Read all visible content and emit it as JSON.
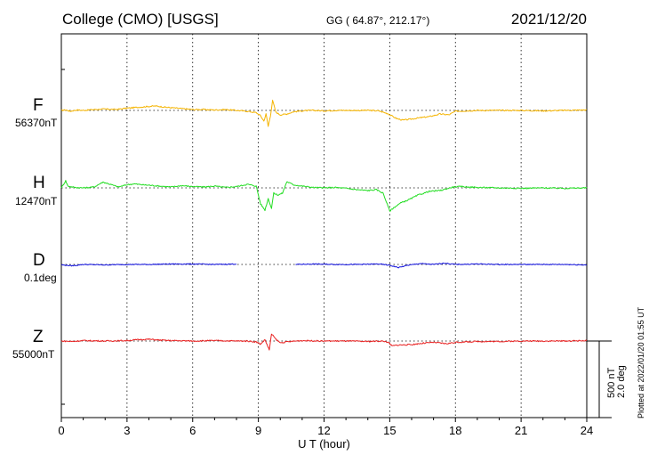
{
  "header": {
    "title": "College (CMO)  [USGS]",
    "coords": "GG ( 64.87°, 212.17°)",
    "date": "2021/12/20"
  },
  "footer": {
    "plotted": "Plotted at 2022/01/20 01:55 UT"
  },
  "scale": {
    "nt": "500 nT",
    "deg": "2.0 deg"
  },
  "chart_data": {
    "type": "line",
    "title": "College (CMO)  [USGS]",
    "xlabel": "U T (hour)",
    "ylabel": "",
    "xlim": [
      0,
      24
    ],
    "x_ticks": [
      "0",
      "3",
      "6",
      "9",
      "12",
      "15",
      "18",
      "21",
      "24"
    ],
    "grid": true,
    "units_note": "y values are deviations from each component baseline in nT (D in scaled nT-equivalent, 500 nT = 2.0 deg)",
    "series": [
      {
        "name": "F",
        "base_label": "56370nT",
        "color": "#f5b400",
        "points": [
          [
            0,
            0
          ],
          [
            0.2,
            5
          ],
          [
            0.4,
            -10
          ],
          [
            0.7,
            5
          ],
          [
            1.0,
            0
          ],
          [
            1.5,
            10
          ],
          [
            2.0,
            15
          ],
          [
            2.5,
            10
          ],
          [
            3.0,
            25
          ],
          [
            3.5,
            35
          ],
          [
            4.0,
            45
          ],
          [
            4.3,
            50
          ],
          [
            4.8,
            35
          ],
          [
            5.5,
            20
          ],
          [
            6.0,
            10
          ],
          [
            6.5,
            10
          ],
          [
            7.0,
            5
          ],
          [
            7.5,
            10
          ],
          [
            8.0,
            0
          ],
          [
            8.5,
            -10
          ],
          [
            8.9,
            -25
          ],
          [
            9.1,
            -60
          ],
          [
            9.25,
            -120
          ],
          [
            9.35,
            -40
          ],
          [
            9.45,
            -180
          ],
          [
            9.55,
            -60
          ],
          [
            9.65,
            110
          ],
          [
            9.8,
            -20
          ],
          [
            10.0,
            -50
          ],
          [
            10.3,
            -40
          ],
          [
            10.6,
            -15
          ],
          [
            11.0,
            -5
          ],
          [
            11.5,
            0
          ],
          [
            12.0,
            -5
          ],
          [
            12.5,
            0
          ],
          [
            13.0,
            0
          ],
          [
            13.5,
            0
          ],
          [
            14.0,
            0
          ],
          [
            14.5,
            -5
          ],
          [
            14.9,
            -35
          ],
          [
            15.3,
            -90
          ],
          [
            15.6,
            -110
          ],
          [
            15.9,
            -100
          ],
          [
            16.3,
            -85
          ],
          [
            16.8,
            -70
          ],
          [
            17.3,
            -40
          ],
          [
            17.7,
            -50
          ],
          [
            18.0,
            -10
          ],
          [
            18.5,
            -5
          ],
          [
            19.0,
            0
          ],
          [
            20.0,
            0
          ],
          [
            21.0,
            0
          ],
          [
            22.0,
            -5
          ],
          [
            23.0,
            0
          ],
          [
            24.0,
            5
          ]
        ]
      },
      {
        "name": "H",
        "base_label": "12470nT",
        "color": "#22dd22",
        "points": [
          [
            0,
            0
          ],
          [
            0.2,
            80
          ],
          [
            0.3,
            20
          ],
          [
            0.6,
            5
          ],
          [
            1.0,
            0
          ],
          [
            1.5,
            10
          ],
          [
            1.9,
            65
          ],
          [
            2.3,
            35
          ],
          [
            2.6,
            10
          ],
          [
            3.0,
            35
          ],
          [
            3.3,
            45
          ],
          [
            3.7,
            35
          ],
          [
            4.0,
            30
          ],
          [
            4.5,
            20
          ],
          [
            5.0,
            10
          ],
          [
            5.5,
            25
          ],
          [
            6.0,
            15
          ],
          [
            6.5,
            10
          ],
          [
            7.0,
            20
          ],
          [
            7.5,
            5
          ],
          [
            8.0,
            15
          ],
          [
            8.5,
            40
          ],
          [
            8.9,
            20
          ],
          [
            9.1,
            -180
          ],
          [
            9.3,
            -250
          ],
          [
            9.45,
            -120
          ],
          [
            9.6,
            -230
          ],
          [
            9.7,
            -60
          ],
          [
            9.9,
            -80
          ],
          [
            10.1,
            -60
          ],
          [
            10.3,
            70
          ],
          [
            10.6,
            35
          ],
          [
            11.0,
            20
          ],
          [
            11.5,
            5
          ],
          [
            12.0,
            0
          ],
          [
            12.5,
            5
          ],
          [
            13.0,
            -5
          ],
          [
            13.5,
            -20
          ],
          [
            14.0,
            -30
          ],
          [
            14.4,
            -20
          ],
          [
            14.7,
            -60
          ],
          [
            15.0,
            -260
          ],
          [
            15.2,
            -220
          ],
          [
            15.5,
            -170
          ],
          [
            15.9,
            -130
          ],
          [
            16.3,
            -80
          ],
          [
            16.8,
            -40
          ],
          [
            17.3,
            -30
          ],
          [
            17.9,
            10
          ],
          [
            18.3,
            15
          ],
          [
            19.0,
            5
          ],
          [
            20.0,
            0
          ],
          [
            21.0,
            -5
          ],
          [
            22.0,
            0
          ],
          [
            23.0,
            -5
          ],
          [
            24.0,
            0
          ]
        ]
      },
      {
        "name": "D",
        "base_label": "0.1deg",
        "color": "#1010dd",
        "points": [
          [
            0,
            -5
          ],
          [
            0.5,
            -15
          ],
          [
            1.0,
            0
          ],
          [
            2.0,
            -5
          ],
          [
            3.0,
            0
          ],
          [
            4.0,
            0
          ],
          [
            5.0,
            5
          ],
          [
            6.0,
            5
          ],
          [
            7.0,
            0
          ],
          [
            8.0,
            5
          ],
          [
            null,
            null
          ],
          [
            10.7,
            0
          ],
          [
            11.5,
            5
          ],
          [
            12.5,
            0
          ],
          [
            13.5,
            0
          ],
          [
            14.5,
            5
          ],
          [
            15.0,
            -10
          ],
          [
            15.4,
            -35
          ],
          [
            15.8,
            -10
          ],
          [
            16.4,
            10
          ],
          [
            17.0,
            0
          ],
          [
            17.5,
            15
          ],
          [
            18.0,
            0
          ],
          [
            19.0,
            5
          ],
          [
            20.0,
            0
          ],
          [
            21.0,
            0
          ],
          [
            22.0,
            0
          ],
          [
            23.0,
            0
          ],
          [
            24.0,
            -5
          ]
        ]
      },
      {
        "name": "Z",
        "base_label": "55000nT",
        "color": "#e82020",
        "points": [
          [
            0,
            0
          ],
          [
            0.5,
            -5
          ],
          [
            1.0,
            5
          ],
          [
            2.0,
            0
          ],
          [
            3.0,
            5
          ],
          [
            3.5,
            15
          ],
          [
            4.0,
            20
          ],
          [
            4.5,
            10
          ],
          [
            5.0,
            5
          ],
          [
            6.0,
            0
          ],
          [
            7.0,
            5
          ],
          [
            8.0,
            0
          ],
          [
            8.5,
            0
          ],
          [
            8.9,
            -10
          ],
          [
            9.1,
            -35
          ],
          [
            9.3,
            15
          ],
          [
            9.5,
            -100
          ],
          [
            9.6,
            80
          ],
          [
            9.8,
            20
          ],
          [
            10.0,
            -20
          ],
          [
            10.3,
            -10
          ],
          [
            10.7,
            0
          ],
          [
            11.0,
            5
          ],
          [
            12.0,
            0
          ],
          [
            13.0,
            0
          ],
          [
            14.0,
            -5
          ],
          [
            14.6,
            0
          ],
          [
            14.9,
            -10
          ],
          [
            15.1,
            -55
          ],
          [
            15.4,
            -45
          ],
          [
            16.0,
            -40
          ],
          [
            16.5,
            -25
          ],
          [
            17.0,
            -15
          ],
          [
            17.6,
            -30
          ],
          [
            18.0,
            -15
          ],
          [
            19.0,
            -5
          ],
          [
            20.0,
            -5
          ],
          [
            21.0,
            0
          ],
          [
            22.0,
            0
          ],
          [
            23.0,
            0
          ],
          [
            24.0,
            5
          ]
        ]
      }
    ]
  }
}
